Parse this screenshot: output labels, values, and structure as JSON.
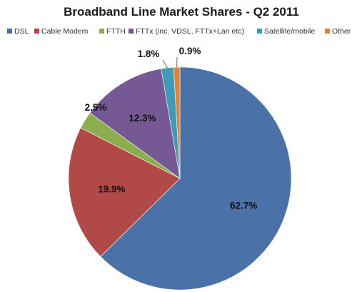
{
  "chart_data": {
    "type": "pie",
    "title": "Broadband Line Market Shares  - Q2 2011",
    "legend_position": "top",
    "start_angle": "12 o'clock, clockwise",
    "slices": [
      {
        "name": "DSL",
        "value": 62.7,
        "label": "62.7%",
        "color": "#4a72a9"
      },
      {
        "name": "Cable Modem",
        "value": 19.9,
        "label": "19.9%",
        "color": "#b14a47"
      },
      {
        "name": "FTTH",
        "value": 2.5,
        "label": "2.5%",
        "color": "#8aad4e"
      },
      {
        "name": "FTTx (inc. VDSL, FTTx+Lan etc)",
        "value": 12.3,
        "label": "12.3%",
        "color": "#755894"
      },
      {
        "name": "Satellite/mobile",
        "value": 1.8,
        "label": "1.8%",
        "color": "#3f9bb5"
      },
      {
        "name": "Other",
        "value": 0.9,
        "label": "0.9%",
        "color": "#e3822f"
      }
    ]
  }
}
